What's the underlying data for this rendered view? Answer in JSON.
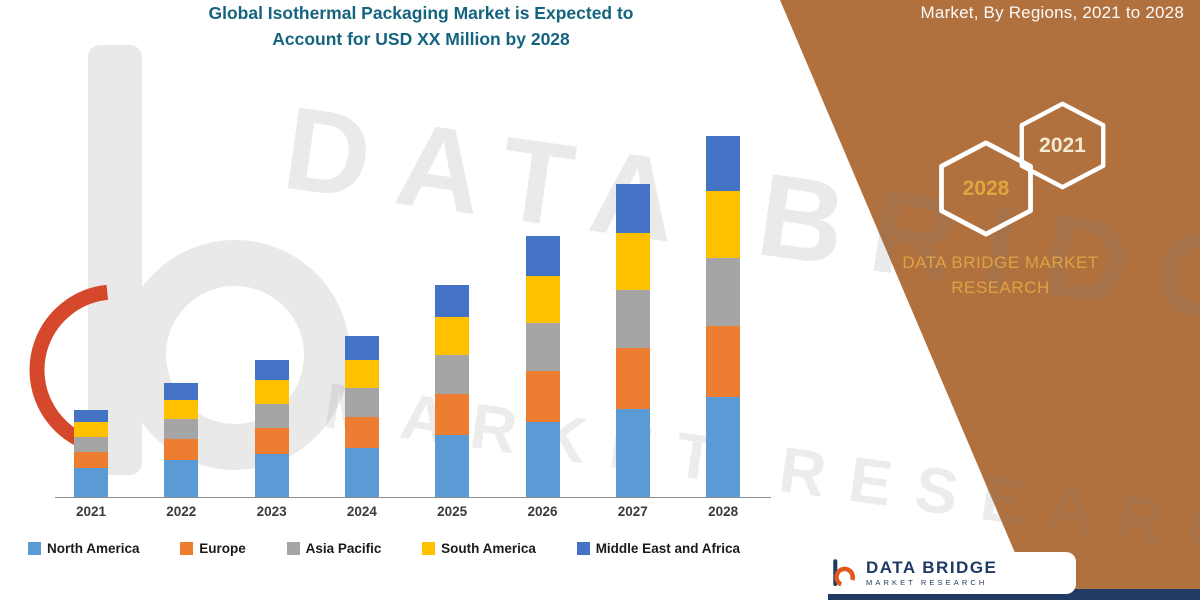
{
  "title": {
    "line1": "Global Isothermal Packaging Market is Expected to",
    "line2": "Account for USD XX Million by 2028"
  },
  "side_panel": {
    "heading": "Market, By Regions, 2021 to 2028",
    "hexagon_back_label": "2028",
    "hexagon_front_label": "2021",
    "brand_line1": "DATA BRIDGE MARKET",
    "brand_line2": "RESEARCH"
  },
  "watermark": {
    "line1": "DATA BRIDGE",
    "line2": "MARKET RESEARCH"
  },
  "footer": {
    "brand": "DATA BRIDGE",
    "brand_sub": "MARKET RESEARCH"
  },
  "colors": {
    "panel_brown": "#B1713E",
    "title_teal": "#15647F",
    "gold": "#DFA243",
    "navy": "#203A64",
    "logo_red": "#D6482C"
  },
  "chart_data": {
    "type": "bar",
    "stacked": true,
    "title": "Global Isothermal Packaging Market is Expected to Account for USD XX Million by 2028",
    "xlabel": "",
    "ylabel": "",
    "y_axis_visible": false,
    "grid": false,
    "legend_position": "bottom",
    "unit_note": "USD XX Million (axis values not shown; heights estimated in relative units)",
    "categories": [
      "2021",
      "2022",
      "2023",
      "2024",
      "2025",
      "2026",
      "2027",
      "2028"
    ],
    "series": [
      {
        "name": "North America",
        "color": "#5B9BD5",
        "values": [
          2.9,
          3.7,
          4.3,
          4.9,
          6.2,
          7.5,
          8.8,
          10.0
        ]
      },
      {
        "name": "Europe",
        "color": "#ED7D31",
        "values": [
          1.6,
          2.1,
          2.6,
          3.1,
          4.1,
          5.1,
          6.1,
          7.1
        ]
      },
      {
        "name": "Asia Pacific",
        "color": "#A5A5A5",
        "values": [
          1.5,
          2.0,
          2.4,
          2.9,
          3.9,
          4.8,
          5.8,
          6.8
        ]
      },
      {
        "name": "South America",
        "color": "#FFC000",
        "values": [
          1.5,
          1.9,
          2.4,
          2.8,
          3.8,
          4.7,
          5.7,
          6.7
        ]
      },
      {
        "name": "Middle East and Africa",
        "color": "#4472C4",
        "values": [
          1.2,
          1.7,
          2.0,
          2.4,
          3.2,
          4.0,
          4.9,
          5.5
        ]
      }
    ],
    "totals": [
      8.7,
      11.4,
      13.7,
      16.1,
      21.2,
      26.1,
      31.3,
      36.1
    ],
    "ylim": [
      0,
      40
    ]
  }
}
